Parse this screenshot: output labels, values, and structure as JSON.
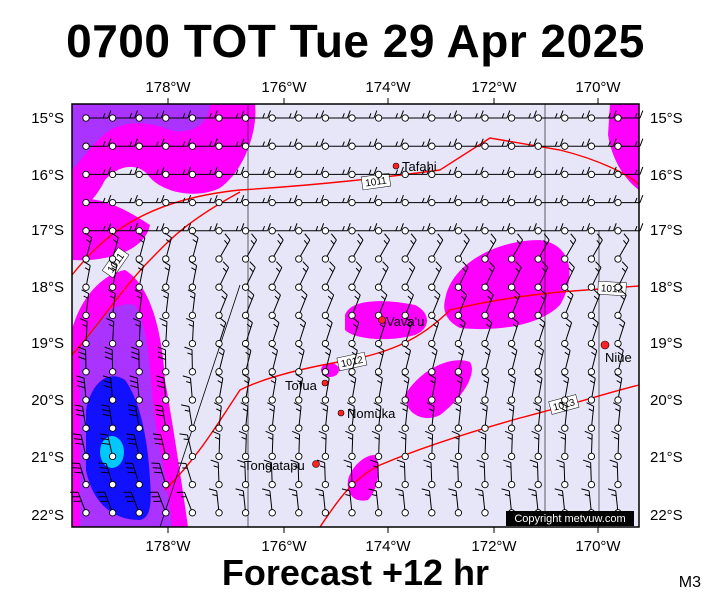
{
  "title": "0700 TOT Tue 29 Apr 2025",
  "footer": "Forecast +12 hr",
  "model_tag": "M3",
  "copyright": "Copyright metvuw.com",
  "colors": {
    "sea": "#e6e6f8",
    "isobar": "#ff0000",
    "rain_light": "#ff00ff",
    "rain_mid": "#aa33ff",
    "rain_heavy": "#1111ff",
    "rain_max": "#00c8ff"
  },
  "lon_labels_top": [
    "178°W",
    "176°W",
    "174°W",
    "172°W",
    "170°W"
  ],
  "lon_labels_bottom": [
    "178°W",
    "176°W",
    "174°W",
    "172°W",
    "170°W"
  ],
  "lat_labels": [
    "15°S",
    "16°S",
    "17°S",
    "18°S",
    "19°S",
    "20°S",
    "21°S",
    "22°S"
  ],
  "places": [
    {
      "name": "Tafahi"
    },
    {
      "name": "Vava'u"
    },
    {
      "name": "Niue"
    },
    {
      "name": "Tofua"
    },
    {
      "name": "Nomuka"
    },
    {
      "name": "Tongatapu"
    }
  ],
  "isobar_labels": [
    "1011",
    "1011",
    "1012",
    "1012",
    "1013"
  ],
  "legend_icons": [
    "wind-barb-icon",
    "station-circle-icon"
  ]
}
